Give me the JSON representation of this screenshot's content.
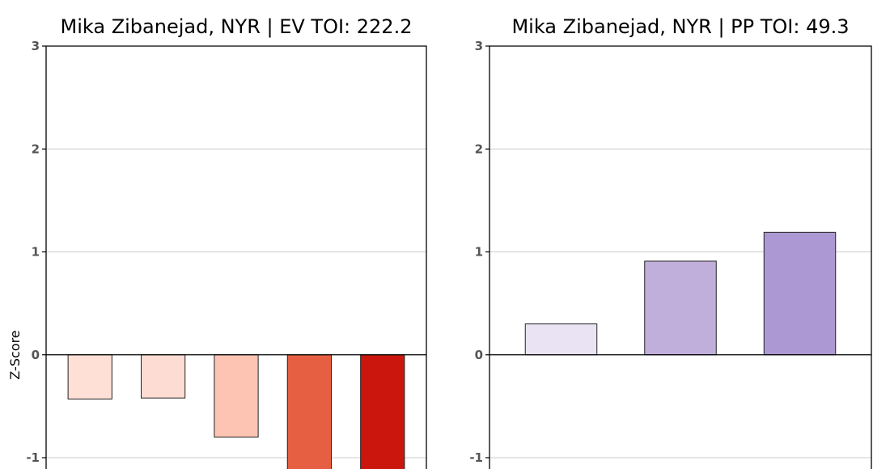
{
  "chart_data": [
    {
      "type": "bar",
      "title": "Mika Zibanejad, NYR  |  EV TOI: 222.2",
      "ylabel": "Z-Score",
      "ylim": [
        -1.11,
        3
      ],
      "yticks": [
        3,
        2,
        1,
        0,
        -1
      ],
      "grid": true,
      "values": [
        -0.43,
        -0.42,
        -0.8,
        -1.2,
        -1.2
      ],
      "colors": [
        "#fee0d6",
        "#fddcd3",
        "#fdc4b4",
        "#e65f42",
        "#cb160e"
      ]
    },
    {
      "type": "bar",
      "title": "Mika Zibanejad, NYR  |  PP TOI: 49.3",
      "ylabel": "",
      "ylim": [
        -1.11,
        3
      ],
      "yticks": [
        3,
        2,
        1,
        0,
        -1
      ],
      "grid": true,
      "values": [
        0.3,
        0.91,
        1.19
      ],
      "colors": [
        "#e9e3f3",
        "#c1afdb",
        "#ac98d2"
      ]
    }
  ]
}
